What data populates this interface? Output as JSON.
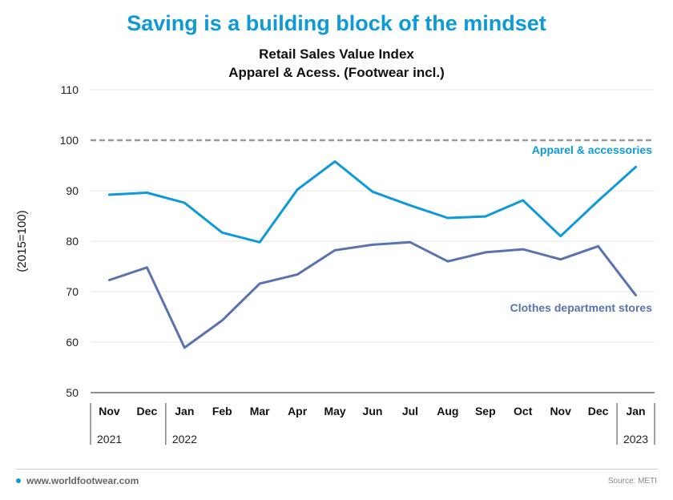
{
  "page": {
    "headline": "Saving is a building block of the mindset",
    "footer_site": "www.worldfootwear.com",
    "footer_source": "Source: METI"
  },
  "colors": {
    "headline": "#0e9ad8",
    "apparel": "#0e9ad8",
    "clothes": "#5a72b0",
    "reference": "#9a9a9a",
    "grid": "#e6e6e6"
  },
  "chart_data": {
    "type": "line",
    "title": "Retail Sales Value Index",
    "subtitle": "Apparel & Acess. (Footwear incl.)",
    "xlabel": "",
    "ylabel": "(2015=100)",
    "ylim": [
      50,
      110
    ],
    "yticks": [
      50,
      60,
      70,
      80,
      90,
      100,
      110
    ],
    "grid": true,
    "categories": [
      "Nov",
      "Dec",
      "Jan",
      "Feb",
      "Mar",
      "Apr",
      "May",
      "Jun",
      "Jul",
      "Aug",
      "Sep",
      "Oct",
      "Nov",
      "Dec",
      "Jan"
    ],
    "year_groups": [
      {
        "label": "2021",
        "start": 0,
        "end": 1
      },
      {
        "label": "2022",
        "start": 2,
        "end": 13
      },
      {
        "label": "2023",
        "start": 14,
        "end": 14
      }
    ],
    "reference_line": {
      "value": 100,
      "style": "dashed"
    },
    "series": [
      {
        "name": "Apparel & accessories",
        "values": [
          89.2,
          89.6,
          87.6,
          81.7,
          79.8,
          90.2,
          95.8,
          89.8,
          87.1,
          84.6,
          84.9,
          88.1,
          81.0,
          88.0,
          94.7
        ]
      },
      {
        "name": "Clothes department stores",
        "values": [
          72.3,
          74.8,
          58.9,
          64.3,
          71.6,
          73.4,
          78.2,
          79.3,
          79.8,
          76.0,
          77.8,
          78.4,
          76.4,
          79.0,
          69.3
        ]
      }
    ]
  }
}
